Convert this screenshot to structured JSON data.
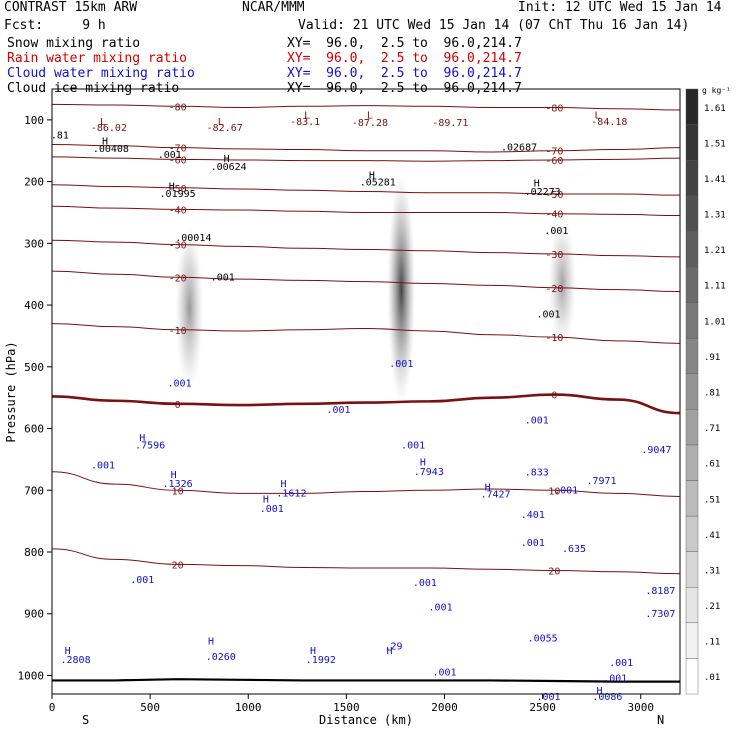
{
  "header": {
    "model": "CONTRAST 15km ARW",
    "org": "NCAR/MMM",
    "init": "Init: 12 UTC Wed 15 Jan 14",
    "fcst": "Fcst:     9 h",
    "valid": "Valid: 21 UTC Wed 15 Jan 14 (07 ChT Thu 16 Jan 14)",
    "fields": [
      {
        "label": "Snow mixing ratio",
        "xy": "XY=  96.0,  2.5 to  96.0,214.7",
        "color": "#000000"
      },
      {
        "label": "Rain water mixing ratio",
        "xy": "XY=  96.0,  2.5 to  96.0,214.7",
        "color": "#d40000"
      },
      {
        "label": "Cloud water mixing ratio",
        "xy": "XY=  96.0,  2.5 to  96.0,214.7",
        "color": "#1010d0"
      },
      {
        "label": "Cloud ice mixing ratio",
        "xy": "XY=  96.0,  2.5 to  96.0,214.7",
        "color": "#000000"
      }
    ]
  },
  "colorbar": {
    "unit": "g kg⁻¹",
    "levels": [
      ".01",
      ".11",
      ".21",
      ".31",
      ".41",
      ".51",
      ".61",
      ".71",
      ".81",
      ".91",
      "1.01",
      "1.11",
      "1.21",
      "1.31",
      "1.41",
      "1.51",
      "1.61"
    ]
  },
  "chart_data": {
    "type": "cross-section",
    "xlabel": "Distance (km)",
    "ylabel": "Pressure (hPa)",
    "xlim": [
      0,
      3200
    ],
    "ylim": [
      1030,
      50
    ],
    "xticks": [
      0,
      500,
      1000,
      1500,
      2000,
      2500,
      3000
    ],
    "yticks": [
      100,
      200,
      300,
      400,
      500,
      600,
      700,
      800,
      900,
      1000
    ],
    "endpoints": {
      "left": "S",
      "right": "N"
    },
    "temperature_isotherms": [
      {
        "label": "-80",
        "p": [
          75,
          76,
          78,
          80,
          78,
          77,
          78,
          80,
          80,
          82,
          84
        ]
      },
      {
        "label": "-70",
        "p": [
          140,
          142,
          145,
          147,
          148,
          150,
          150,
          152,
          150,
          148,
          145
        ]
      },
      {
        "label": "-60",
        "p": [
          160,
          162,
          164,
          165,
          166,
          166,
          167,
          166,
          165,
          164,
          162
        ]
      },
      {
        "label": "-50",
        "p": [
          205,
          208,
          210,
          212,
          214,
          216,
          218,
          218,
          220,
          220,
          222
        ]
      },
      {
        "label": "-40",
        "p": [
          240,
          243,
          245,
          246,
          248,
          250,
          250,
          250,
          252,
          253,
          255
        ]
      },
      {
        "label": "-30",
        "p": [
          295,
          298,
          302,
          305,
          308,
          310,
          312,
          315,
          317,
          320,
          322
        ]
      },
      {
        "label": "-20",
        "p": [
          345,
          350,
          355,
          358,
          360,
          362,
          365,
          368,
          372,
          375,
          378
        ]
      },
      {
        "label": "-10",
        "p": [
          430,
          435,
          440,
          442,
          440,
          438,
          442,
          448,
          452,
          458,
          462
        ]
      },
      {
        "label": "0",
        "p": [
          548,
          555,
          560,
          562,
          560,
          558,
          556,
          550,
          545,
          553,
          575
        ]
      },
      {
        "label": "10",
        "p": [
          670,
          690,
          700,
          705,
          705,
          702,
          700,
          698,
          700,
          705,
          710
        ]
      },
      {
        "label": "20",
        "p": [
          795,
          812,
          820,
          822,
          825,
          826,
          826,
          828,
          830,
          832,
          835
        ]
      }
    ],
    "surface_pressure": [
      1008,
      1008,
      1006,
      1007,
      1008,
      1008,
      1008,
      1008,
      1009,
      1010,
      1010
    ],
    "snow_plumes": [
      {
        "x": 700,
        "p_top": 270,
        "p_bottom": 540,
        "max": 0.55
      },
      {
        "x": 1780,
        "p_top": 190,
        "p_bottom": 560,
        "max": 1.2
      },
      {
        "x": 2600,
        "p_top": 260,
        "p_bottom": 470,
        "max": 0.5
      }
    ],
    "extrema_labels": [
      {
        "text": "L",
        "x": 260,
        "p": 108
      },
      {
        "text": "-86.02",
        "x": 290,
        "p": 118
      },
      {
        "text": "L",
        "x": 860,
        "p": 108
      },
      {
        "text": "-82.67",
        "x": 880,
        "p": 118
      },
      {
        "text": "L",
        "x": 1300,
        "p": 98
      },
      {
        "text": "-83.1",
        "x": 1290,
        "p": 108
      },
      {
        "text": "L",
        "x": 1620,
        "p": 98
      },
      {
        "text": "-87.28",
        "x": 1620,
        "p": 110
      },
      {
        "text": "-89.71",
        "x": 2030,
        "p": 110
      },
      {
        "text": "L",
        "x": 2780,
        "p": 98
      },
      {
        "text": "-84.18",
        "x": 2840,
        "p": 108
      },
      {
        "text": "H",
        "x": 270,
        "p": 140
      },
      {
        "text": ".00408",
        "x": 300,
        "p": 152
      },
      {
        "text": ".001",
        "x": 600,
        "p": 162
      },
      {
        "text": "H",
        "x": 890,
        "p": 168
      },
      {
        "text": ".00624",
        "x": 900,
        "p": 181
      },
      {
        "text": "H",
        "x": 610,
        "p": 213
      },
      {
        "text": ".01995",
        "x": 640,
        "p": 225
      },
      {
        "text": ".00014",
        "x": 720,
        "p": 296
      },
      {
        "text": ".001",
        "x": 870,
        "p": 360
      },
      {
        "text": "H",
        "x": 1630,
        "p": 195
      },
      {
        "text": ".05281",
        "x": 1660,
        "p": 206
      },
      {
        "text": "H",
        "x": 2470,
        "p": 208
      },
      {
        "text": ".02273",
        "x": 2500,
        "p": 222
      },
      {
        "text": ".02687",
        "x": 2380,
        "p": 150
      },
      {
        "text": ".001",
        "x": 2570,
        "p": 285
      },
      {
        "text": ".001",
        "x": 2530,
        "p": 420
      },
      {
        "text": ".001",
        "x": 650,
        "p": 532
      },
      {
        "text": ".001",
        "x": 1460,
        "p": 575
      },
      {
        "text": ".001",
        "x": 1780,
        "p": 500
      },
      {
        "text": "H",
        "x": 460,
        "p": 620
      },
      {
        "text": ".7596",
        "x": 500,
        "p": 632
      },
      {
        "text": ".001",
        "x": 260,
        "p": 665
      },
      {
        "text": "H",
        "x": 620,
        "p": 680
      },
      {
        "text": ".1326",
        "x": 640,
        "p": 695
      },
      {
        "text": "H",
        "x": 1180,
        "p": 695
      },
      {
        "text": ".1612",
        "x": 1220,
        "p": 710
      },
      {
        "text": "H",
        "x": 1090,
        "p": 720
      },
      {
        "text": ".001",
        "x": 1120,
        "p": 735
      },
      {
        "text": ".001",
        "x": 1840,
        "p": 632
      },
      {
        "text": "H",
        "x": 1890,
        "p": 660
      },
      {
        "text": ".7943",
        "x": 1920,
        "p": 675
      },
      {
        "text": ".001",
        "x": 2470,
        "p": 592
      },
      {
        "text": ".833",
        "x": 2470,
        "p": 676
      },
      {
        "text": "H",
        "x": 2220,
        "p": 700
      },
      {
        "text": ".7427",
        "x": 2260,
        "p": 712
      },
      {
        "text": ".401",
        "x": 2450,
        "p": 745
      },
      {
        "text": ".001",
        "x": 2620,
        "p": 705
      },
      {
        "text": ".7971",
        "x": 2800,
        "p": 690
      },
      {
        "text": ".9047",
        "x": 3080,
        "p": 640
      },
      {
        "text": ".001",
        "x": 2450,
        "p": 790
      },
      {
        "text": ".635",
        "x": 2660,
        "p": 800
      },
      {
        "text": ".001",
        "x": 460,
        "p": 850
      },
      {
        "text": ".001",
        "x": 1900,
        "p": 855
      },
      {
        "text": ".001",
        "x": 1980,
        "p": 895
      },
      {
        "text": ".0055",
        "x": 2500,
        "p": 945
      },
      {
        "text": ".8187",
        "x": 3100,
        "p": 868
      },
      {
        "text": ".7307",
        "x": 3100,
        "p": 905
      },
      {
        "text": "H",
        "x": 80,
        "p": 965
      },
      {
        "text": ".2808",
        "x": 120,
        "p": 980
      },
      {
        "text": "H",
        "x": 810,
        "p": 950
      },
      {
        "text": ".0260",
        "x": 860,
        "p": 975
      },
      {
        "text": "H",
        "x": 1330,
        "p": 965
      },
      {
        "text": ".1992",
        "x": 1370,
        "p": 980
      },
      {
        "text": "H",
        "x": 1720,
        "p": 965
      },
      {
        "text": ".29",
        "x": 1740,
        "p": 958
      },
      {
        "text": ".001",
        "x": 2000,
        "p": 1000
      },
      {
        "text": ".001",
        "x": 2900,
        "p": 985
      },
      {
        "text": ".001",
        "x": 2870,
        "p": 1010
      },
      {
        "text": ".001",
        "x": 2530,
        "p": 1040
      },
      {
        "text": "H",
        "x": 2790,
        "p": 1030
      },
      {
        "text": ".0086",
        "x": 2830,
        "p": 1040
      },
      {
        "text": ".81",
        "x": 40,
        "p": 130
      }
    ]
  }
}
